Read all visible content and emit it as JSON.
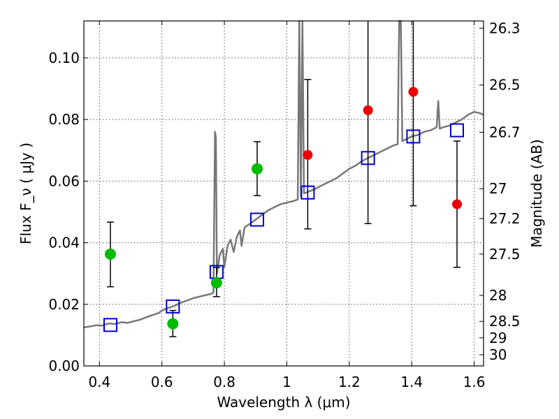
{
  "chart_data": {
    "type": "scatter",
    "xlabel": "Wavelength  λ (μm)",
    "ylabel": "Flux  F_ν  ( μJy )",
    "y2label": "Magnitude (AB)",
    "xlim": [
      0.35,
      1.63
    ],
    "ylim": [
      0.0,
      0.112
    ],
    "grid": true,
    "xticks": [
      0.4,
      0.6,
      0.8,
      1.0,
      1.2,
      1.4,
      1.6
    ],
    "xtick_labels": [
      "0.4",
      "0.6",
      "0.8",
      "1",
      "1.2",
      "1.4",
      "1.6"
    ],
    "yticks": [
      0.0,
      0.02,
      0.04,
      0.06,
      0.08,
      0.1
    ],
    "ytick_labels": [
      "0.00",
      "0.02",
      "0.04",
      "0.06",
      "0.08",
      "0.10"
    ],
    "mag_ticks": [
      26.3,
      26.5,
      26.7,
      27,
      27.2,
      27.5,
      28,
      28.5,
      29,
      30
    ],
    "mag_tick_labels": [
      "26.3",
      "26.5",
      "26.7",
      "27",
      "27.2",
      "27.5",
      "28",
      "28.5",
      "29",
      "30"
    ],
    "colors": {
      "detection": "#00bb00",
      "upper": "#ee0000",
      "model": "#0000cc",
      "sed": "#777777",
      "errorbar": "#000000",
      "grid": "#555555"
    },
    "series": [
      {
        "kind": "detections",
        "points": [
          {
            "x": 0.435,
            "y": 0.0363,
            "ylo": 0.0257,
            "yhi": 0.0467
          },
          {
            "x": 0.635,
            "y": 0.0137,
            "ylo": 0.0095,
            "yhi": 0.018
          },
          {
            "x": 0.775,
            "y": 0.027,
            "ylo": 0.0225,
            "yhi": 0.032
          },
          {
            "x": 0.905,
            "y": 0.064,
            "ylo": 0.0553,
            "yhi": 0.0728
          }
        ]
      },
      {
        "kind": "marginal",
        "points": [
          {
            "x": 1.067,
            "y": 0.0685,
            "ylo": 0.0445,
            "yhi": 0.093
          },
          {
            "x": 1.26,
            "y": 0.083,
            "ylo": 0.0462,
            "yhi": 0.112
          },
          {
            "x": 1.405,
            "y": 0.089,
            "ylo": 0.052,
            "yhi": 0.112
          },
          {
            "x": 1.545,
            "y": 0.0525,
            "ylo": 0.032,
            "yhi": 0.073
          }
        ]
      },
      {
        "kind": "model photometry",
        "points": [
          {
            "x": 0.435,
            "y": 0.0133
          },
          {
            "x": 0.635,
            "y": 0.0193
          },
          {
            "x": 0.775,
            "y": 0.0305
          },
          {
            "x": 0.905,
            "y": 0.0475
          },
          {
            "x": 1.067,
            "y": 0.0563
          },
          {
            "x": 1.26,
            "y": 0.0675
          },
          {
            "x": 1.405,
            "y": 0.0745
          },
          {
            "x": 1.545,
            "y": 0.0765
          }
        ]
      },
      {
        "kind": "model SED",
        "line": [
          [
            0.35,
            0.0125
          ],
          [
            0.37,
            0.0128
          ],
          [
            0.39,
            0.0132
          ],
          [
            0.41,
            0.0131
          ],
          [
            0.43,
            0.0138
          ],
          [
            0.45,
            0.0136
          ],
          [
            0.47,
            0.0142
          ],
          [
            0.49,
            0.014
          ],
          [
            0.51,
            0.0145
          ],
          [
            0.53,
            0.015
          ],
          [
            0.55,
            0.0158
          ],
          [
            0.57,
            0.0165
          ],
          [
            0.59,
            0.0172
          ],
          [
            0.6,
            0.018
          ],
          [
            0.62,
            0.0188
          ],
          [
            0.64,
            0.0195
          ],
          [
            0.66,
            0.0205
          ],
          [
            0.68,
            0.0212
          ],
          [
            0.7,
            0.022
          ],
          [
            0.72,
            0.0225
          ],
          [
            0.74,
            0.023
          ],
          [
            0.755,
            0.0233
          ],
          [
            0.765,
            0.0238
          ],
          [
            0.77,
            0.076
          ],
          [
            0.773,
            0.074
          ],
          [
            0.776,
            0.03
          ],
          [
            0.785,
            0.036
          ],
          [
            0.795,
            0.038
          ],
          [
            0.8,
            0.032
          ],
          [
            0.81,
            0.039
          ],
          [
            0.82,
            0.041
          ],
          [
            0.83,
            0.037
          ],
          [
            0.84,
            0.042
          ],
          [
            0.85,
            0.044
          ],
          [
            0.855,
            0.039
          ],
          [
            0.865,
            0.045
          ],
          [
            0.88,
            0.046
          ],
          [
            0.9,
            0.0475
          ],
          [
            0.92,
            0.049
          ],
          [
            0.94,
            0.0505
          ],
          [
            0.96,
            0.0515
          ],
          [
            0.98,
            0.0525
          ],
          [
            1.0,
            0.053
          ],
          [
            1.02,
            0.0535
          ],
          [
            1.035,
            0.054
          ],
          [
            1.04,
            0.112
          ],
          [
            1.045,
            0.055
          ],
          [
            1.05,
            0.112
          ],
          [
            1.055,
            0.056
          ],
          [
            1.08,
            0.057
          ],
          [
            1.1,
            0.058
          ],
          [
            1.12,
            0.059
          ],
          [
            1.14,
            0.06
          ],
          [
            1.16,
            0.061
          ],
          [
            1.18,
            0.0625
          ],
          [
            1.2,
            0.064
          ],
          [
            1.22,
            0.065
          ],
          [
            1.24,
            0.0665
          ],
          [
            1.26,
            0.0675
          ],
          [
            1.28,
            0.0685
          ],
          [
            1.3,
            0.0695
          ],
          [
            1.32,
            0.0705
          ],
          [
            1.34,
            0.0715
          ],
          [
            1.355,
            0.072
          ],
          [
            1.36,
            0.112
          ],
          [
            1.365,
            0.112
          ],
          [
            1.37,
            0.073
          ],
          [
            1.38,
            0.0735
          ],
          [
            1.4,
            0.0745
          ],
          [
            1.42,
            0.075
          ],
          [
            1.44,
            0.076
          ],
          [
            1.46,
            0.0765
          ],
          [
            1.48,
            0.0775
          ],
          [
            1.485,
            0.086
          ],
          [
            1.49,
            0.077
          ],
          [
            1.5,
            0.0775
          ],
          [
            1.52,
            0.078
          ],
          [
            1.54,
            0.079
          ],
          [
            1.56,
            0.08
          ],
          [
            1.58,
            0.0815
          ],
          [
            1.6,
            0.0825
          ],
          [
            1.62,
            0.082
          ],
          [
            1.63,
            0.0815
          ]
        ]
      }
    ]
  }
}
